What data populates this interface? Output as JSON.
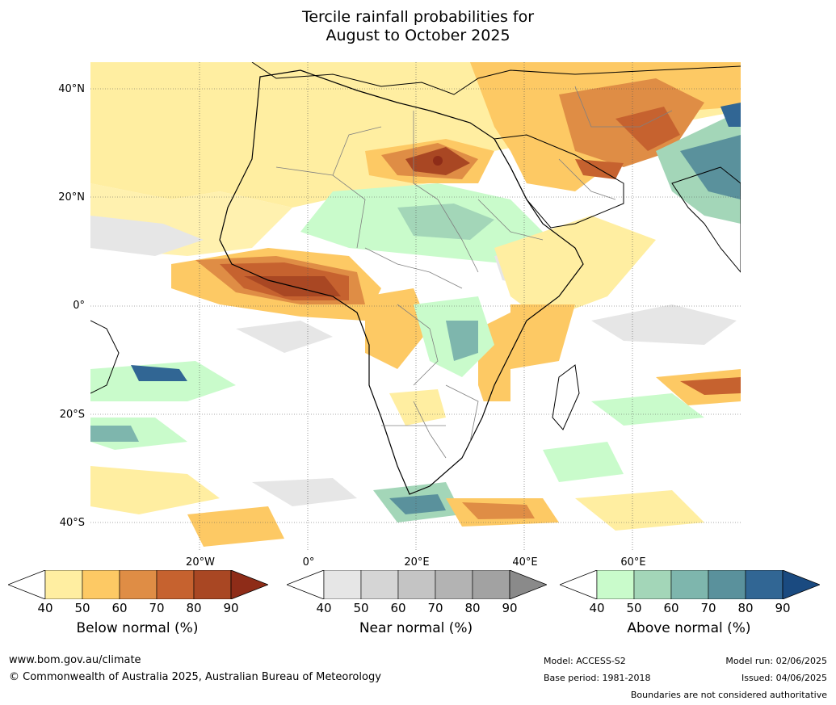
{
  "title": {
    "line1": "Tercile rainfall probabilities for",
    "line2": "August to October 2025"
  },
  "map": {
    "lat_labels": [
      "40°N",
      "20°N",
      "0°",
      "20°S",
      "40°S"
    ],
    "lon_labels": [
      "20°W",
      "0°",
      "20°E",
      "40°E",
      "60°E"
    ],
    "colors": {
      "ocean_bg": "#ffffff",
      "below": [
        "#ffeea1",
        "#fdc964",
        "#df8d45",
        "#c6622f",
        "#a94723",
        "#8e2c18"
      ],
      "near": [
        "#e6e6e6",
        "#d5d5d5",
        "#c4c4c4",
        "#b3b3b3",
        "#a2a2a2",
        "#8a8a8a"
      ],
      "above": [
        "#c9fbcb",
        "#a3d6b8",
        "#7eb6ad",
        "#5a919c",
        "#316694",
        "#1a4a80"
      ]
    }
  },
  "colorbars": [
    {
      "id": "below",
      "title": "Below normal (%)",
      "ticks": [
        "40",
        "50",
        "60",
        "70",
        "80",
        "90"
      ]
    },
    {
      "id": "near",
      "title": "Near normal (%)",
      "ticks": [
        "40",
        "50",
        "60",
        "70",
        "80",
        "90"
      ]
    },
    {
      "id": "above",
      "title": "Above normal (%)",
      "ticks": [
        "40",
        "50",
        "60",
        "70",
        "80",
        "90"
      ]
    }
  ],
  "footer": {
    "website": "www.bom.gov.au/climate",
    "copyright": "© Commonwealth of Australia 2025, Australian Bureau of Meteorology",
    "model": "Model: ACCESS-S2",
    "base_period": "Base period: 1981-2018",
    "model_run": "Model run: 02/06/2025",
    "issued": "Issued: 04/06/2025",
    "disclaimer": "Boundaries are not considered authoritative"
  }
}
